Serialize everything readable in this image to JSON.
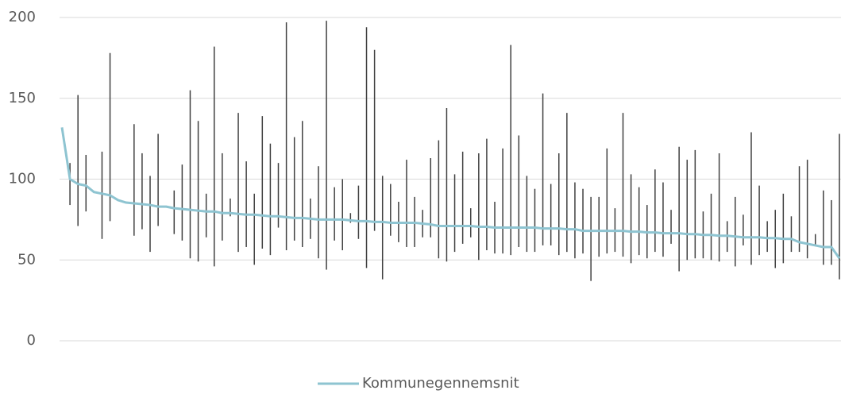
{
  "chart_data": {
    "type": "line",
    "ylim": [
      0,
      200
    ],
    "yticks": [
      0,
      50,
      100,
      150,
      200
    ],
    "grid": true,
    "legend": "bottom",
    "categories": [
      null,
      null,
      null,
      null,
      null,
      null,
      null,
      null,
      null,
      null,
      null,
      null,
      null,
      null,
      null,
      null,
      null,
      null,
      null,
      null,
      null,
      null,
      null,
      null,
      null,
      null,
      null,
      null,
      null,
      null,
      null,
      null,
      null,
      null,
      null,
      null,
      null,
      null,
      null,
      null,
      null,
      null,
      null,
      null,
      null,
      null,
      null,
      null,
      null,
      null,
      null,
      null,
      null,
      null,
      null,
      null,
      null,
      null,
      null,
      null,
      null,
      null,
      null,
      null,
      null,
      null,
      null,
      null,
      null,
      null,
      null,
      null,
      null,
      null,
      null,
      null,
      null,
      null,
      null,
      null,
      null,
      null,
      null,
      null,
      null,
      null,
      null,
      null,
      null,
      null,
      null,
      null,
      null,
      null,
      null,
      null,
      null,
      null
    ],
    "series": [
      {
        "name": "Kommunegennemsnit",
        "color": "#8ec4d1",
        "values": [
          132,
          100,
          97,
          96,
          92,
          91,
          90,
          87,
          85.5,
          85,
          84.5,
          84,
          83,
          83,
          82,
          81.5,
          81,
          80.5,
          80,
          80,
          79,
          79,
          78.5,
          78,
          78,
          77.5,
          77,
          77,
          76.5,
          76,
          76,
          75.5,
          75,
          75,
          75,
          75,
          74.5,
          74,
          74,
          73.5,
          73.5,
          73,
          73,
          73,
          73,
          72.5,
          72,
          71,
          71,
          71,
          71,
          71,
          70.5,
          70.5,
          70,
          70,
          70,
          70,
          70,
          70,
          69.5,
          69.5,
          69.5,
          69,
          69,
          68,
          68,
          68,
          68,
          68,
          68,
          67.5,
          67.5,
          67,
          67,
          66.5,
          66.5,
          66.5,
          66,
          66,
          65.5,
          65.5,
          65,
          65,
          64.5,
          64,
          64,
          64,
          63.5,
          63.5,
          63,
          63,
          61,
          60,
          59,
          58,
          58,
          51
        ]
      }
    ],
    "range_color": "#404040",
    "ranges": [
      null,
      [
        84,
        110
      ],
      [
        71,
        152
      ],
      [
        80,
        115
      ],
      null,
      [
        63,
        117
      ],
      [
        74,
        178
      ],
      null,
      null,
      [
        65,
        134
      ],
      [
        69,
        116
      ],
      [
        55,
        102
      ],
      [
        71,
        128
      ],
      null,
      [
        66,
        93
      ],
      [
        62,
        109
      ],
      [
        51,
        155
      ],
      [
        49,
        136
      ],
      [
        64,
        91
      ],
      [
        46,
        182
      ],
      [
        62,
        116
      ],
      [
        77,
        88
      ],
      [
        55,
        141
      ],
      [
        58,
        111
      ],
      [
        47,
        91
      ],
      [
        57,
        139
      ],
      [
        53,
        122
      ],
      [
        70,
        110
      ],
      [
        56,
        197
      ],
      [
        62,
        126
      ],
      [
        58,
        136
      ],
      [
        63,
        88
      ],
      [
        51,
        108
      ],
      [
        44,
        198
      ],
      [
        62,
        95
      ],
      [
        56,
        100
      ],
      [
        73,
        79
      ],
      [
        63,
        96
      ],
      [
        45,
        194
      ],
      [
        68,
        180
      ],
      [
        38,
        102
      ],
      [
        65,
        97
      ],
      [
        61,
        86
      ],
      [
        58,
        112
      ],
      [
        58,
        89
      ],
      [
        64,
        81
      ],
      [
        64,
        113
      ],
      [
        51,
        124
      ],
      [
        49,
        144
      ],
      [
        55,
        103
      ],
      [
        60,
        117
      ],
      [
        64,
        82
      ],
      [
        50,
        116
      ],
      [
        56,
        125
      ],
      [
        54,
        86
      ],
      [
        54,
        119
      ],
      [
        53,
        183
      ],
      [
        58,
        127
      ],
      [
        55,
        102
      ],
      [
        55,
        94
      ],
      [
        59,
        153
      ],
      [
        59,
        97
      ],
      [
        53,
        116
      ],
      [
        55,
        141
      ],
      [
        51,
        98
      ],
      [
        54,
        94
      ],
      [
        37,
        89
      ],
      [
        52,
        89
      ],
      [
        54,
        119
      ],
      [
        55,
        82
      ],
      [
        52,
        141
      ],
      [
        48,
        103
      ],
      [
        53,
        95
      ],
      [
        51,
        84
      ],
      [
        55,
        106
      ],
      [
        52,
        98
      ],
      [
        60,
        81
      ],
      [
        43,
        120
      ],
      [
        50,
        112
      ],
      [
        51,
        118
      ],
      [
        51,
        80
      ],
      [
        50,
        91
      ],
      [
        49,
        116
      ],
      [
        55,
        74
      ],
      [
        46,
        89
      ],
      [
        59,
        78
      ],
      [
        47,
        129
      ],
      [
        53,
        96
      ],
      [
        55,
        74
      ],
      [
        45,
        81
      ],
      [
        48,
        91
      ],
      [
        55,
        77
      ],
      [
        55,
        108
      ],
      [
        51,
        112
      ],
      [
        59,
        66
      ],
      [
        47,
        93
      ],
      [
        47,
        87
      ],
      [
        38,
        128
      ]
    ]
  }
}
